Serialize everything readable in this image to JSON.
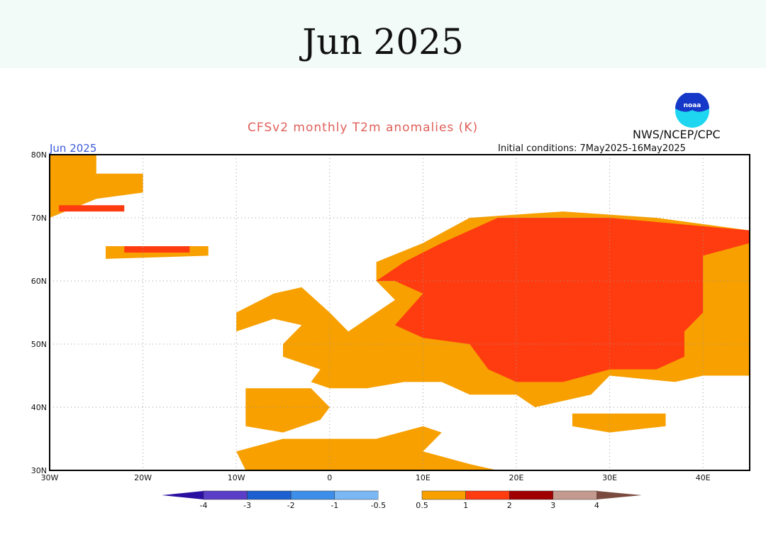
{
  "header": {
    "title": "Jun 2025"
  },
  "plot": {
    "title": "CFSv2 monthly T2m anomalies (K)",
    "agency": "NWS/NCEP/CPC",
    "logo": "NOAA",
    "month_label": "Jun 2025",
    "initial_conditions": "Initial conditions: 7May2025-16May2025",
    "lat_ticks": [
      "80N",
      "70N",
      "60N",
      "50N",
      "40N",
      "30N"
    ],
    "lon_ticks": [
      "30W",
      "20W",
      "10W",
      "0",
      "10E",
      "20E",
      "30E",
      "40E"
    ],
    "lon_range": [
      -30,
      45
    ],
    "lat_range": [
      30,
      80
    ]
  },
  "colorbar": {
    "labels": [
      "-4",
      "-3",
      "-2",
      "-1",
      "-0.5",
      "0.5",
      "1",
      "2",
      "3",
      "4"
    ],
    "colors": [
      "#2a0fa0",
      "#5a3ec8",
      "#1c5fd0",
      "#3d8ee8",
      "#7ab8f5",
      "#ffffff",
      "#f7a000",
      "#ff3b10",
      "#a00000",
      "#c49a8e",
      "#7a4a3e"
    ]
  },
  "colors": {
    "anom_05_1": "#f7a000",
    "anom_1_2": "#ff3b10"
  }
}
